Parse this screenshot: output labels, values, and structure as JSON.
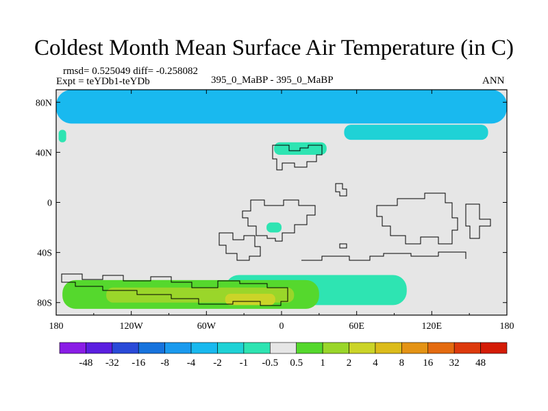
{
  "title": "Coldest Month Mean Surface Air Temperature (in C)",
  "stats_line": "rmsd= 0.525049 diff= -0.258082",
  "experiment_line": "Expt = teYDb1-teYDb",
  "center_label": "395_0_MaBP - 395_0_MaBP",
  "season_label": "ANN",
  "chart_data": {
    "type": "heatmap",
    "title": "Coldest Month Mean Surface Air Temperature (in C)",
    "projection": "cylindrical equidistant",
    "x_ticks": [
      "180",
      "120W",
      "60W",
      "0",
      "60E",
      "120E",
      "180"
    ],
    "x_values": [
      -180,
      -120,
      -60,
      0,
      60,
      120,
      180
    ],
    "y_ticks": [
      "80N",
      "40N",
      "0",
      "40S",
      "80S"
    ],
    "y_values": [
      80,
      40,
      0,
      -40,
      -80
    ],
    "xlim": [
      -180,
      180
    ],
    "ylim": [
      -90,
      90
    ],
    "colorbar_labels": [
      "-48",
      "-32",
      "-16",
      "-8",
      "-4",
      "-2",
      "-1",
      "-0.5",
      "0.5",
      "1",
      "2",
      "4",
      "8",
      "16",
      "32",
      "48"
    ],
    "colorbar_colors": [
      "#8a1de6",
      "#5b1fe0",
      "#2a4ad8",
      "#1773dd",
      "#1a9aee",
      "#19b9ef",
      "#1fd2d6",
      "#2ee4b2",
      "#e6e6e6",
      "#55d82d",
      "#9ad62a",
      "#cbd428",
      "#dcbc1b",
      "#e49315",
      "#e46b10",
      "#dd3a0c",
      "#d41c06"
    ],
    "regions": [
      {
        "name": "Arctic cold band",
        "lon": [
          -180,
          180
        ],
        "lat": [
          63,
          90
        ],
        "level": "-2",
        "color": "#19b9ef"
      },
      {
        "name": "Siberia / North Pacific cold patch",
        "lon": [
          50,
          165
        ],
        "lat": [
          50,
          62
        ],
        "level": "-1",
        "color": "#1fd2d6"
      },
      {
        "name": "Western North Atlantic cold patch",
        "lon": [
          -178,
          -172
        ],
        "lat": [
          48,
          58
        ],
        "level": "-0.5",
        "color": "#2ee4b2"
      },
      {
        "name": "Europe cold patch",
        "lon": [
          -6,
          36
        ],
        "lat": [
          38,
          48
        ],
        "level": "-0.5",
        "color": "#2ee4b2"
      },
      {
        "name": "South Atlantic cold patch",
        "lon": [
          -12,
          0
        ],
        "lat": [
          -24,
          -16
        ],
        "level": "-0.5",
        "color": "#2ee4b2"
      },
      {
        "name": "Southern Ocean cold band",
        "lon": [
          -45,
          100
        ],
        "lat": [
          -82,
          -58
        ],
        "level": "-0.5",
        "color": "#2ee4b2"
      },
      {
        "name": "Antarctic coastal warming",
        "lon": [
          -175,
          30
        ],
        "lat": [
          -85,
          -62
        ],
        "level": "1",
        "color": "#55d82d"
      },
      {
        "name": "Antarctic interior warming",
        "lon": [
          -140,
          10
        ],
        "lat": [
          -80,
          -68
        ],
        "level": "2",
        "color": "#9ad62a"
      },
      {
        "name": "Antarctic local maximum",
        "lon": [
          -45,
          -5
        ],
        "lat": [
          -82,
          -73
        ],
        "level": "4",
        "color": "#cbd428"
      }
    ]
  }
}
